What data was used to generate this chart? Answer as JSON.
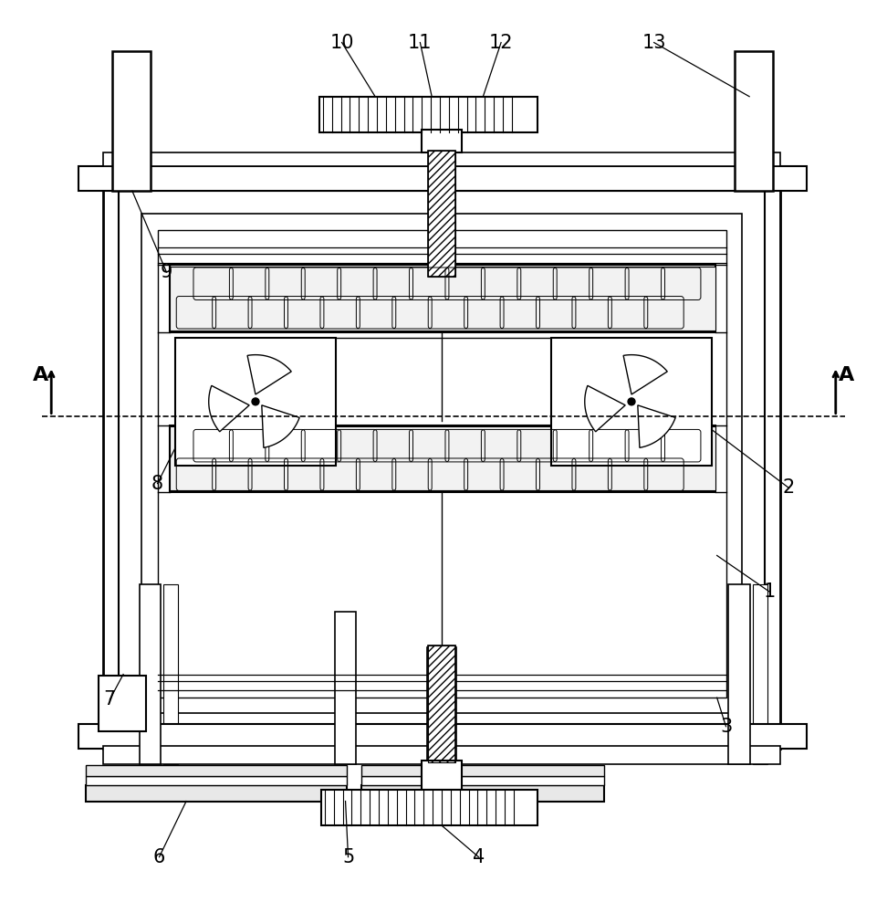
{
  "bg_color": "#ffffff",
  "line_color": "#000000",
  "fig_width": 9.72,
  "fig_height": 10.0
}
